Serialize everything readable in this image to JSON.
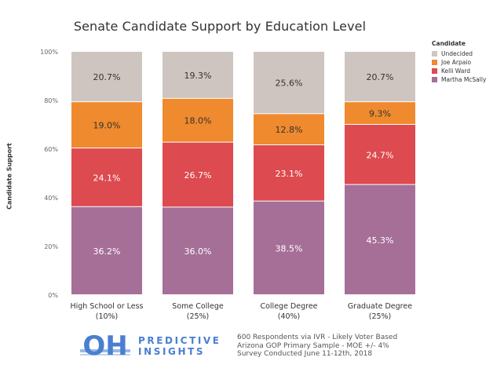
{
  "chart_data": {
    "type": "bar",
    "stacked": true,
    "title": "Senate Candidate Support by Education Level",
    "ylabel": "Candidate Support",
    "xlabel": "",
    "ylim": [
      0,
      100
    ],
    "yticks": [
      "0%",
      "20%",
      "40%",
      "60%",
      "80%",
      "100%"
    ],
    "categories": [
      {
        "name": "High School or Less",
        "sub": "(10%)"
      },
      {
        "name": "Some College",
        "sub": "(25%)"
      },
      {
        "name": "College Degree",
        "sub": "(40%)"
      },
      {
        "name": "Graduate Degree",
        "sub": "(25%)"
      }
    ],
    "series": [
      {
        "name": "Martha McSally",
        "color": "#a66f98",
        "text_color": "#ffffff",
        "values": [
          36.2,
          36.0,
          38.5,
          45.3
        ],
        "labels": [
          "36.2%",
          "36.0%",
          "38.5%",
          "45.3%"
        ]
      },
      {
        "name": "Kelli Ward",
        "color": "#dd4a4f",
        "text_color": "#ffffff",
        "values": [
          24.1,
          26.7,
          23.1,
          24.7
        ],
        "labels": [
          "24.1%",
          "26.7%",
          "23.1%",
          "24.7%"
        ]
      },
      {
        "name": "Joe Arpaio",
        "color": "#ef8a2e",
        "text_color": "#333333",
        "values": [
          19.0,
          18.0,
          12.8,
          9.3
        ],
        "labels": [
          "19.0%",
          "18.0%",
          "12.8%",
          "9.3%"
        ]
      },
      {
        "name": "Undecided",
        "color": "#cfc5c0",
        "text_color": "#333333",
        "values": [
          20.7,
          19.3,
          25.6,
          20.7
        ],
        "labels": [
          "20.7%",
          "19.3%",
          "25.6%",
          "20.7%"
        ]
      }
    ],
    "legend": {
      "title": "Candidate",
      "position": "top-right",
      "items": [
        {
          "name": "Undecided",
          "color": "#cfc5c0"
        },
        {
          "name": "Joe Arpaio",
          "color": "#ef8a2e"
        },
        {
          "name": "Kelli Ward",
          "color": "#dd4a4f"
        },
        {
          "name": "Martha McSally",
          "color": "#a66f98"
        }
      ]
    },
    "grid": false
  },
  "footer": {
    "logo_mark": "OH",
    "logo_line1": "PREDICTIVE",
    "logo_line2": "INSIGHTS",
    "logo_color": "#4a7fd0",
    "note_line1": "600 Respondents via IVR - Likely Voter Based",
    "note_line2": "Arizona GOP Primary Sample - MOE +/- 4%",
    "note_line3": "Survey Conducted June 11-12th, 2018"
  }
}
